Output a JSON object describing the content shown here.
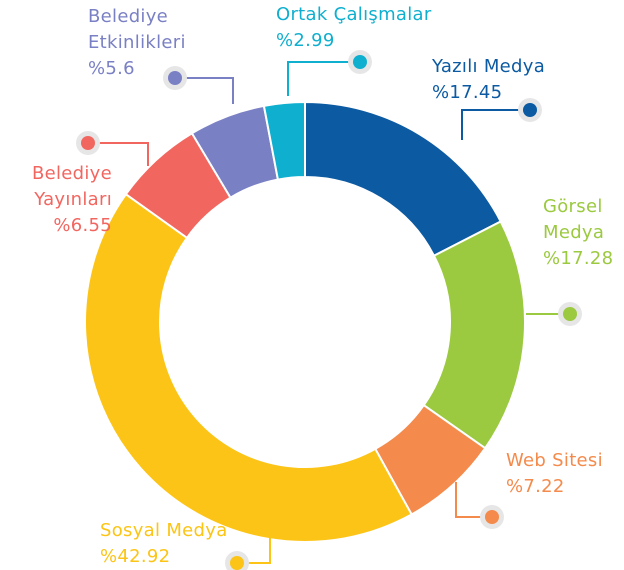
{
  "chart_data": {
    "type": "donut",
    "categories": [
      "Yazılı Medya",
      "Görsel Medya",
      "Web Sitesi",
      "Sosyal Medya",
      "Belediye Yayınları",
      "Belediye Etkinlikleri",
      "Ortak Çalışmalar"
    ],
    "values": [
      17.45,
      17.28,
      7.22,
      42.92,
      6.55,
      5.6,
      2.99
    ],
    "value_labels": [
      "%17.45",
      "%17.28",
      "%7.22",
      "%42.92",
      "%6.55",
      "%5.6",
      "%2.99"
    ],
    "colors": [
      "#0b5aa2",
      "#9bc93f",
      "#f48a4b",
      "#fcc416",
      "#f26660",
      "#7a80c4",
      "#0fafcf"
    ]
  }
}
